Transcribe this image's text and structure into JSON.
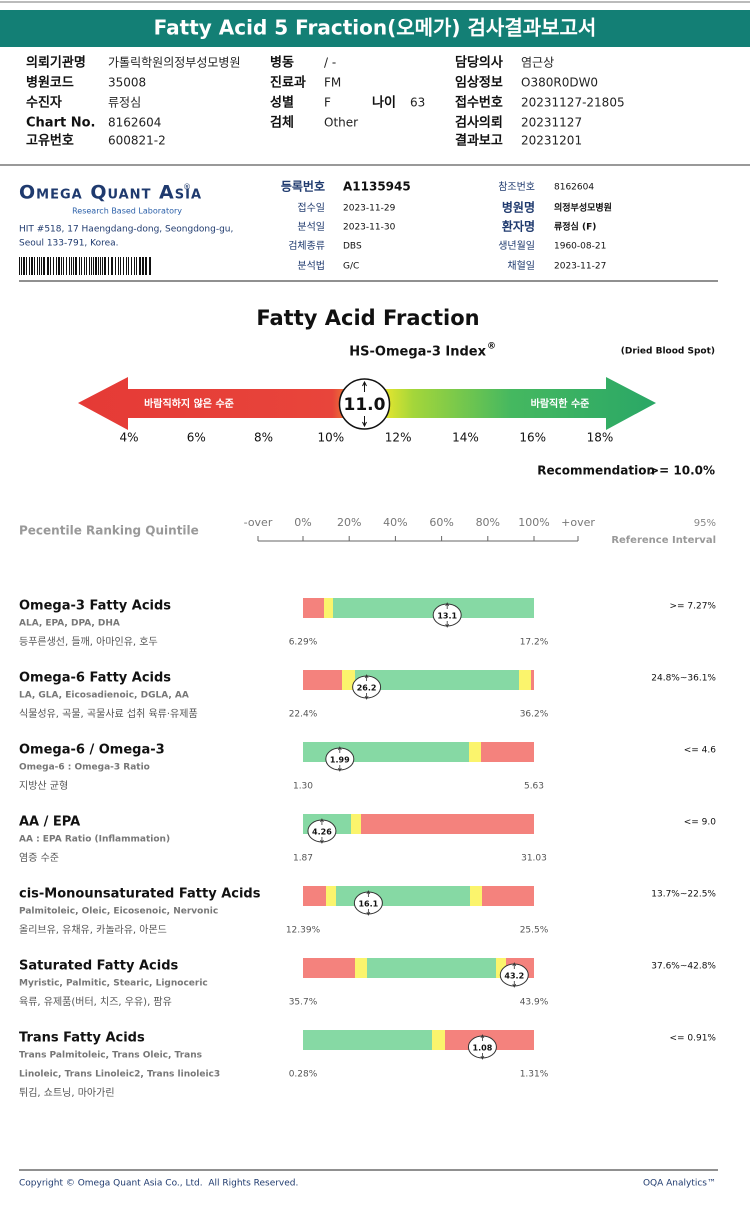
{
  "header": {
    "title": "Fatty Acid 5 Fraction(오메가) 검사결과보고서"
  },
  "request_info": {
    "columns": [
      [
        {
          "label": "의뢰기관명",
          "value": "가톨릭학원의정부성모병원"
        },
        {
          "label": "병원코드",
          "value": "35008"
        },
        {
          "label": "수진자",
          "value": "류정심"
        },
        {
          "label": "Chart No.",
          "value": "8162604"
        },
        {
          "label": "고유번호",
          "value": "600821-2"
        }
      ],
      [
        {
          "label": "병동",
          "value": "/ -"
        },
        {
          "label": "진료과",
          "value": "FM"
        },
        {
          "label": "성별",
          "value": "F",
          "extra_label": "나이",
          "extra_value": "63"
        },
        {
          "label": "검체",
          "value": "Other"
        }
      ],
      [
        {
          "label": "담당의사",
          "value": "염근상"
        },
        {
          "label": "임상정보",
          "value": "O380R0DW0"
        },
        {
          "label": "접수번호",
          "value": "20231127-21805"
        },
        {
          "label": "검사의뢰",
          "value": "20231127"
        },
        {
          "label": "결과보고",
          "value": "20231201"
        }
      ]
    ]
  },
  "lab": {
    "name": "Omega Quant Asia",
    "name_mark": "®",
    "tagline": "Research Based Laboratory",
    "address": [
      "HIT #518, 17 Haengdang-dong, Seongdong-gu,",
      "Seoul 133-791, Korea."
    ],
    "sample_info": [
      {
        "label": "등록번호",
        "value": "A1135945"
      },
      {
        "label": "접수일",
        "value": "2023-11-29"
      },
      {
        "label": "분석일",
        "value": "2023-11-30"
      },
      {
        "label": "검체종류",
        "value": "DBS"
      },
      {
        "label": "분석법",
        "value": "G/C"
      }
    ],
    "patient_info": [
      {
        "label": "참조번호",
        "value": "8162604"
      },
      {
        "label": "병원명",
        "value": "의정부성모병원"
      },
      {
        "label": "환자명",
        "value": "류정심 (F)"
      },
      {
        "label": "생년월일",
        "value": "1960-08-21"
      },
      {
        "label": "채혈일",
        "value": "2023-11-27"
      }
    ]
  },
  "index_report": {
    "title": "Fatty Acid Fraction",
    "index_name": "HS-Omega-3 Index",
    "index_mark": "®",
    "sample_type": "(Dried Blood Spot)",
    "low_label": "바람직하지 않은 수준",
    "high_label": "바람직한 수준",
    "value": 11,
    "value_label": "11.0",
    "ticks": [
      {
        "value": 4,
        "label": "4%"
      },
      {
        "value": 6,
        "label": "6%"
      },
      {
        "value": 8,
        "label": "8%"
      },
      {
        "value": 10,
        "label": "10%"
      },
      {
        "value": 12,
        "label": "12%"
      },
      {
        "value": 14,
        "label": "14%"
      },
      {
        "value": 16,
        "label": "16%"
      },
      {
        "value": 18,
        "label": "18%"
      }
    ],
    "recommendation_label": "Recommendation",
    "recommendation": ">= 10.0%"
  },
  "percentile": {
    "title": "Pecentile Ranking Quintile",
    "under_label": "-over",
    "over_label": "+over",
    "ticks": [
      {
        "value": 0,
        "label": "0%"
      },
      {
        "value": 20,
        "label": "20%"
      },
      {
        "value": 40,
        "label": "40%"
      },
      {
        "value": 60,
        "label": "60%"
      },
      {
        "value": 80,
        "label": "80%"
      },
      {
        "value": 100,
        "label": "100%"
      }
    ],
    "reference_title": [
      "95%",
      "Reference Interval"
    ]
  },
  "results": [
    {
      "name": "Omega-3 Fatty Acids",
      "components": [
        "ALA, EPA, DPA, DHA"
      ],
      "foods": "등푸른생선, 들깨, 아마인유, 호두",
      "min": {
        "value": 6.29,
        "label": "6.29%"
      },
      "max": {
        "value": 17.2,
        "label": "17.2%"
      },
      "value": 13.1,
      "reference": ">= 7.27%"
    },
    {
      "name": "Omega-6 Fatty Acids",
      "components": [
        "LA, GLA, Eicosadienoic, DGLA, AA"
      ],
      "foods": "식물성유, 곡물, 곡물사료 섭취 육류·유제품",
      "min": {
        "value": 22.4,
        "label": "22.4%"
      },
      "max": {
        "value": 36.2,
        "label": "36.2%"
      },
      "value": 26.2,
      "reference": "24.8%~36.1%"
    },
    {
      "name": "Omega-6 / Omega-3",
      "components": [
        "Omega-6 : Omega-3 Ratio"
      ],
      "foods": "지방산 균형",
      "min": {
        "value": 1.3,
        "label": "1.30"
      },
      "max": {
        "value": 5.63,
        "label": "5.63"
      },
      "value": 1.99,
      "reference": "<= 4.6"
    },
    {
      "name": "AA / EPA",
      "components": [
        "AA : EPA Ratio (Inflammation)"
      ],
      "foods": "염증 수준",
      "min": {
        "value": 1.87,
        "label": "1.87"
      },
      "max": {
        "value": 31.03,
        "label": "31.03"
      },
      "value": 4.26,
      "reference": "<= 9.0"
    },
    {
      "name": "cis-Monounsaturated Fatty Acids",
      "components": [
        "Palmitoleic, Oleic, Eicosenoic, Nervonic"
      ],
      "foods": "올리브유, 유채유, 카놀라유, 아몬드",
      "min": {
        "value": 12.39,
        "label": "12.39%"
      },
      "max": {
        "value": 25.5,
        "label": "25.5%"
      },
      "value": 16.1,
      "reference": "13.7%~22.5%"
    },
    {
      "name": "Saturated Fatty Acids",
      "components": [
        "Myristic, Palmitic, Stearic, Lignoceric"
      ],
      "foods": "육류, 유제품(버터, 치즈, 우유), 팜유",
      "min": {
        "value": 35.7,
        "label": "35.7%"
      },
      "max": {
        "value": 43.9,
        "label": "43.9%"
      },
      "value": 43.2,
      "reference": "37.6%~42.8%"
    },
    {
      "name": "Trans Fatty Acids",
      "components": [
        "Trans Palmitoleic, Trans Oleic, Trans",
        "Linoleic, Trans Linoleic2, Trans linoleic3"
      ],
      "foods": "튀김, 쇼트닝, 마아가린",
      "min": {
        "value": 0.28,
        "label": "0.28%"
      },
      "max": {
        "value": 1.31,
        "label": "1.31%"
      },
      "value": 1.08,
      "reference": "<= 0.91%"
    }
  ],
  "footer": {
    "copyright": "Copyright © Omega Quant Asia Co., Ltd.  All Rights Reserved.",
    "brand": "OQA Analytics™"
  }
}
